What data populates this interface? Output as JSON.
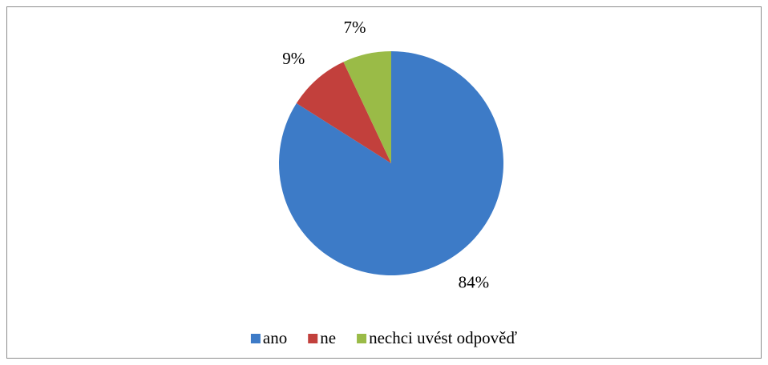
{
  "chart_data": {
    "type": "pie",
    "categories": [
      "ano",
      "ne",
      "nechci uvést odpověď"
    ],
    "values": [
      84,
      9,
      7
    ],
    "value_labels": [
      "84%",
      "9%",
      "7%"
    ],
    "colors": [
      "#3d7bc7",
      "#c2403c",
      "#9abb47"
    ],
    "legend": "bottom"
  }
}
